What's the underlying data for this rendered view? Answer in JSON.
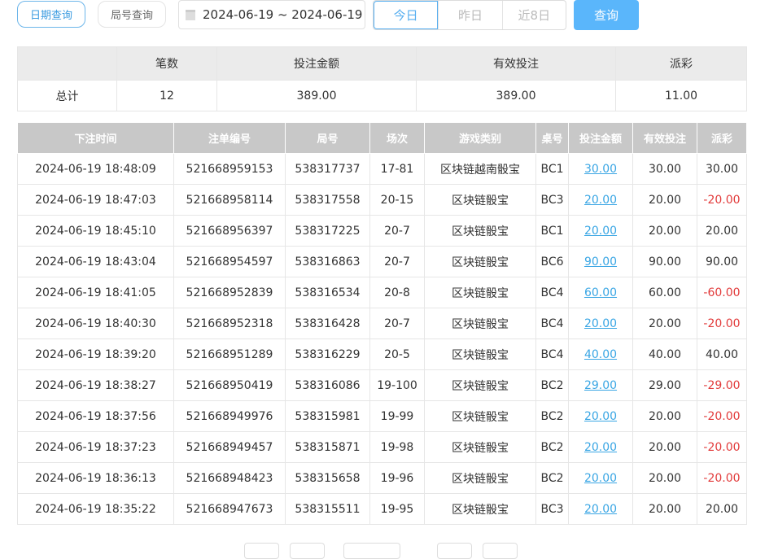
{
  "toolbar": {
    "date_query": "日期查询",
    "round_query": "局号查询",
    "date_range": "2024-06-19 ~ 2024-06-19",
    "today": "今日",
    "yesterday": "昨日",
    "last8": "近8日",
    "search": "查询"
  },
  "summary": {
    "headers": [
      "",
      "笔数",
      "投注金额",
      "有效投注",
      "派彩"
    ],
    "row": [
      "总计",
      "12",
      "389.00",
      "389.00",
      "11.00"
    ]
  },
  "table": {
    "headers": [
      "下注时间",
      "注单编号",
      "局号",
      "场次",
      "游戏类别",
      "桌号",
      "投注金额",
      "有效投注",
      "派彩"
    ],
    "rows": [
      [
        "2024-06-19 18:48:09",
        "521668959153",
        "538317737",
        "17-81",
        "区块链越南骰宝",
        "BC1",
        "30.00",
        "30.00",
        "30.00"
      ],
      [
        "2024-06-19 18:47:03",
        "521668958114",
        "538317558",
        "20-15",
        "区块链骰宝",
        "BC3",
        "20.00",
        "20.00",
        "-20.00"
      ],
      [
        "2024-06-19 18:45:10",
        "521668956397",
        "538317225",
        "20-7",
        "区块链骰宝",
        "BC1",
        "20.00",
        "20.00",
        "20.00"
      ],
      [
        "2024-06-19 18:43:04",
        "521668954597",
        "538316863",
        "20-7",
        "区块链骰宝",
        "BC6",
        "90.00",
        "90.00",
        "90.00"
      ],
      [
        "2024-06-19 18:41:05",
        "521668952839",
        "538316534",
        "20-8",
        "区块链骰宝",
        "BC4",
        "60.00",
        "60.00",
        "-60.00"
      ],
      [
        "2024-06-19 18:40:30",
        "521668952318",
        "538316428",
        "20-7",
        "区块链骰宝",
        "BC4",
        "20.00",
        "20.00",
        "-20.00"
      ],
      [
        "2024-06-19 18:39:20",
        "521668951289",
        "538316229",
        "20-5",
        "区块链骰宝",
        "BC4",
        "40.00",
        "40.00",
        "40.00"
      ],
      [
        "2024-06-19 18:38:27",
        "521668950419",
        "538316086",
        "19-100",
        "区块链骰宝",
        "BC2",
        "29.00",
        "29.00",
        "-29.00"
      ],
      [
        "2024-06-19 18:37:56",
        "521668949976",
        "538315981",
        "19-99",
        "区块链骰宝",
        "BC2",
        "20.00",
        "20.00",
        "-20.00"
      ],
      [
        "2024-06-19 18:37:23",
        "521668949457",
        "538315871",
        "19-98",
        "区块链骰宝",
        "BC2",
        "20.00",
        "20.00",
        "-20.00"
      ],
      [
        "2024-06-19 18:36:13",
        "521668948423",
        "538315658",
        "19-96",
        "区块链骰宝",
        "BC2",
        "20.00",
        "20.00",
        "-20.00"
      ],
      [
        "2024-06-19 18:35:22",
        "521668947673",
        "538315511",
        "19-95",
        "区块链骰宝",
        "BC3",
        "20.00",
        "20.00",
        "20.00"
      ]
    ]
  },
  "colors": {
    "accent": "#5ab6fb",
    "link": "#3aa6e4",
    "negative": "#e23b3b"
  }
}
